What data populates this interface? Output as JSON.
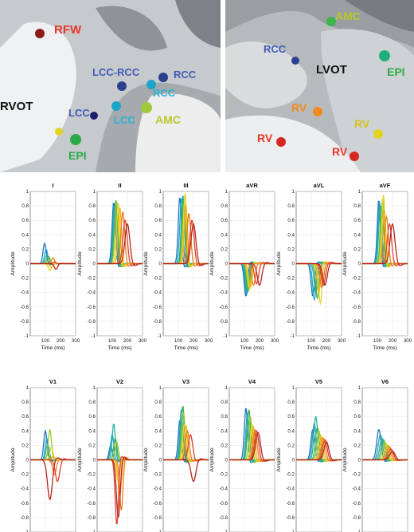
{
  "figure": {
    "left_panel": {
      "labels": [
        {
          "text": "RFW",
          "color": "#e8372c"
        },
        {
          "text": "LCC-RCC",
          "color": "#3e5bb8"
        },
        {
          "text": "RCC",
          "color": "#3e5bb8"
        },
        {
          "text": "RCC",
          "color": "#27b3d6"
        },
        {
          "text": "RVOT",
          "color": "#111111"
        },
        {
          "text": "LCC",
          "color": "#3e5bb8"
        },
        {
          "text": "LCC",
          "color": "#27b3d6"
        },
        {
          "text": "AMC",
          "color": "#b8c72a"
        },
        {
          "text": "EPI",
          "color": "#2aa84a"
        }
      ]
    },
    "right_panel": {
      "labels": [
        {
          "text": "AMC",
          "color": "#b8c72a"
        },
        {
          "text": "RCC",
          "color": "#3e5bb8"
        },
        {
          "text": "LVOT",
          "color": "#111111"
        },
        {
          "text": "EPI",
          "color": "#2aa84a"
        },
        {
          "text": "RV",
          "color": "#f08a1e"
        },
        {
          "text": "RV",
          "color": "#d6c21e"
        },
        {
          "text": "RV",
          "color": "#e8372c"
        },
        {
          "text": "RV",
          "color": "#e8372c"
        }
      ]
    }
  },
  "chart_data": {
    "type": "line",
    "xlabel": "Time (ms)",
    "ylabel": "Amplitude",
    "xlim": [
      0,
      300
    ],
    "ylim": [
      -1,
      1
    ],
    "xticks": [
      100,
      200,
      300
    ],
    "yticks": [
      -1,
      -0.8,
      -0.6,
      -0.4,
      -0.2,
      0,
      0.2,
      0.4,
      0.6,
      0.8,
      1
    ],
    "grid": true,
    "trace_colors": [
      "#1f77b4",
      "#2a9fd6",
      "#27b3a0",
      "#3cb54a",
      "#9bc83c",
      "#e3d325",
      "#f6b21a",
      "#f07a20",
      "#e0412a",
      "#b3261e"
    ],
    "leads": [
      {
        "name": "I",
        "peak_time": [
          95,
          105,
          110,
          120,
          125,
          130,
          140,
          150,
          160,
          170
        ],
        "peak_amp": [
          0.28,
          0.2,
          0.12,
          0.1,
          0.05,
          -0.1,
          -0.05,
          0.08,
          0.02,
          -0.08
        ],
        "width": [
          30,
          30,
          30,
          30,
          30,
          30,
          30,
          30,
          30,
          30
        ]
      },
      {
        "name": "II",
        "peak_time": [
          110,
          115,
          120,
          125,
          130,
          140,
          150,
          170,
          185,
          200
        ],
        "peak_amp": [
          0.85,
          0.82,
          0.8,
          0.88,
          0.86,
          0.83,
          0.78,
          0.72,
          0.6,
          0.55
        ],
        "width": [
          32,
          32,
          32,
          32,
          32,
          32,
          32,
          35,
          40,
          45
        ]
      },
      {
        "name": "III",
        "peak_time": [
          110,
          120,
          130,
          135,
          140,
          145,
          150,
          170,
          190,
          200
        ],
        "peak_amp": [
          0.92,
          0.9,
          0.95,
          0.88,
          0.85,
          0.98,
          0.8,
          0.7,
          0.6,
          0.55
        ],
        "width": [
          30,
          30,
          30,
          30,
          30,
          30,
          30,
          35,
          40,
          45
        ]
      },
      {
        "name": "aVR",
        "peak_time": [
          110,
          115,
          120,
          125,
          130,
          135,
          140,
          160,
          180,
          200
        ],
        "peak_amp": [
          -0.45,
          -0.42,
          -0.4,
          -0.38,
          -0.36,
          -0.34,
          -0.33,
          -0.3,
          -0.28,
          -0.3
        ],
        "width": [
          32,
          32,
          32,
          32,
          32,
          32,
          32,
          35,
          38,
          42
        ]
      },
      {
        "name": "aVL",
        "peak_time": [
          110,
          120,
          130,
          140,
          150,
          160,
          150,
          170,
          180,
          190
        ],
        "peak_amp": [
          -0.45,
          -0.5,
          -0.42,
          -0.48,
          -0.38,
          -0.55,
          -0.4,
          -0.33,
          -0.3,
          -0.3
        ],
        "width": [
          32,
          32,
          32,
          32,
          32,
          32,
          32,
          35,
          38,
          42
        ]
      },
      {
        "name": "aVF",
        "peak_time": [
          110,
          115,
          120,
          130,
          135,
          140,
          145,
          160,
          180,
          200
        ],
        "peak_amp": [
          0.88,
          0.85,
          0.8,
          0.82,
          0.9,
          0.95,
          0.75,
          0.65,
          0.55,
          0.55
        ],
        "width": [
          30,
          30,
          30,
          30,
          30,
          30,
          30,
          35,
          40,
          45
        ]
      },
      {
        "name": "V1",
        "peak_time": [
          100,
          110,
          115,
          120,
          130,
          140,
          150,
          160,
          180,
          130
        ],
        "peak_amp": [
          0.4,
          0.3,
          0.22,
          0.1,
          0.42,
          0.18,
          0.05,
          -0.2,
          -0.3,
          -0.55
        ],
        "width": [
          30,
          30,
          30,
          30,
          30,
          30,
          30,
          35,
          40,
          45
        ]
      },
      {
        "name": "V2",
        "peak_time": [
          90,
          100,
          110,
          120,
          130,
          140,
          150,
          160,
          130,
          140
        ],
        "peak_amp": [
          0.2,
          0.35,
          0.5,
          0.3,
          0.25,
          -0.3,
          -0.5,
          -0.7,
          -0.9,
          -0.8
        ],
        "width": [
          30,
          30,
          30,
          30,
          30,
          30,
          30,
          30,
          30,
          35
        ]
      },
      {
        "name": "V3",
        "peak_time": [
          110,
          120,
          125,
          130,
          135,
          140,
          150,
          160,
          180,
          200
        ],
        "peak_amp": [
          0.55,
          0.7,
          0.6,
          0.75,
          0.65,
          0.5,
          0.48,
          0.4,
          0.35,
          -0.3
        ],
        "width": [
          30,
          30,
          30,
          30,
          30,
          30,
          30,
          35,
          40,
          45
        ]
      },
      {
        "name": "V4",
        "peak_time": [
          110,
          120,
          125,
          130,
          140,
          150,
          160,
          170,
          180,
          190
        ],
        "peak_amp": [
          0.72,
          0.65,
          0.55,
          0.7,
          0.6,
          0.5,
          0.45,
          0.42,
          0.4,
          0.38
        ],
        "width": [
          30,
          30,
          30,
          30,
          30,
          30,
          30,
          35,
          40,
          45
        ]
      },
      {
        "name": "V5",
        "peak_time": [
          110,
          120,
          130,
          140,
          150,
          160,
          170,
          180,
          190,
          200
        ],
        "peak_amp": [
          0.42,
          0.5,
          0.6,
          0.45,
          0.4,
          0.35,
          0.32,
          0.3,
          0.28,
          0.25
        ],
        "width": [
          35,
          35,
          35,
          35,
          35,
          35,
          35,
          38,
          42,
          45
        ]
      },
      {
        "name": "V6",
        "peak_time": [
          110,
          120,
          130,
          140,
          150,
          160,
          170,
          180,
          190,
          200
        ],
        "peak_amp": [
          0.42,
          0.35,
          0.3,
          0.28,
          0.25,
          0.22,
          0.2,
          0.18,
          0.15,
          0.12
        ],
        "width": [
          40,
          40,
          40,
          40,
          40,
          40,
          40,
          42,
          45,
          48
        ]
      }
    ]
  }
}
